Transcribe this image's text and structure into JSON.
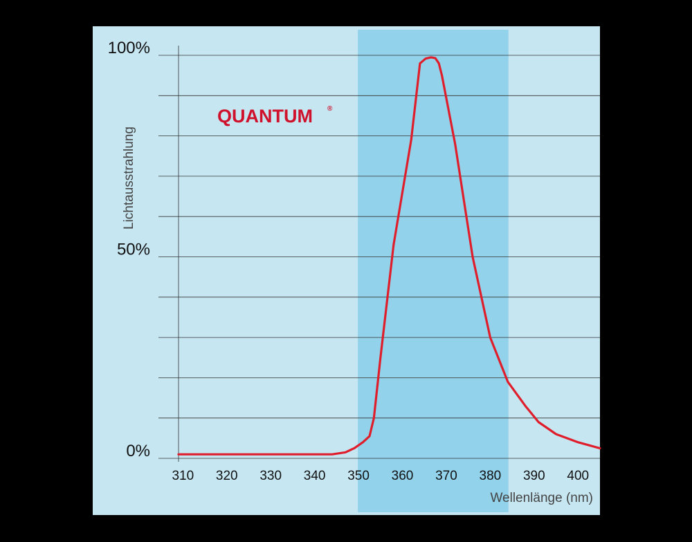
{
  "colors": {
    "background": "#000000",
    "plot_background": "#c6e6f2",
    "highlight_band": "#92d2ea",
    "curve": "#e01e2b",
    "grid": "#333333",
    "brand": "#d0112b"
  },
  "brand": {
    "name": "QUANTUM",
    "mark": "®"
  },
  "chart_data": {
    "type": "line",
    "xlabel": "Wellenlänge (nm)",
    "ylabel": "Lichtausstrahlung",
    "x_ticks": [
      "310",
      "320",
      "330",
      "340",
      "350",
      "360",
      "370",
      "380",
      "390",
      "400"
    ],
    "y_ticks": [
      "0%",
      "50%",
      "100%"
    ],
    "xlim": [
      309,
      405
    ],
    "ylim": [
      0,
      100
    ],
    "grid": "horizontal",
    "highlight_band": [
      350,
      384
    ],
    "series": [
      {
        "x": [
          309,
          320,
          330,
          340,
          344,
          347,
          349,
          351,
          352.5,
          353.5,
          355,
          358,
          362,
          364,
          365.3,
          366.5,
          367.5,
          368.3,
          369,
          372,
          376,
          380,
          384,
          388,
          391,
          395,
          400,
          405
        ],
        "y": [
          1,
          1,
          1,
          1,
          1,
          1.5,
          2.5,
          4,
          5.5,
          10,
          25,
          53,
          79,
          98,
          99.2,
          99.5,
          99.3,
          98,
          95,
          78,
          50,
          30,
          19,
          13,
          9,
          6,
          4,
          2.5
        ]
      }
    ]
  }
}
